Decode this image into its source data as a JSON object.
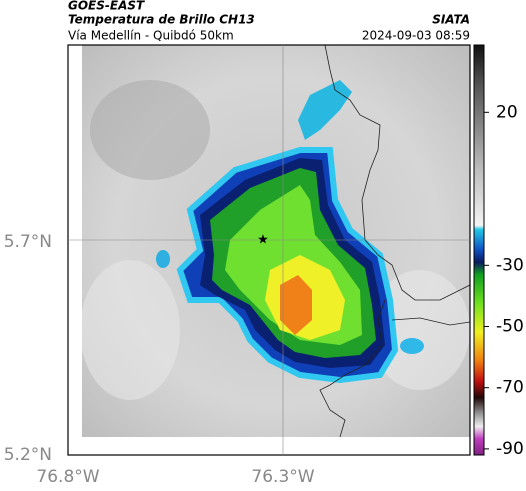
{
  "header": {
    "agency": "GOES-EAST",
    "title": "Temperatura de Brillo CH13",
    "subtitle": "Vía Medellín - Quibdó 50km",
    "source": "SIATA",
    "timestamp": "2024-09-03 08:59"
  },
  "map": {
    "lat_labels": [
      "5.7°N",
      "5.2°N"
    ],
    "lon_labels": [
      "76.8°W",
      "76.3°W"
    ]
  },
  "colorbar": {
    "range": [
      42,
      -92
    ],
    "ticks": [
      20,
      -30,
      -50,
      -70,
      -90
    ]
  }
}
